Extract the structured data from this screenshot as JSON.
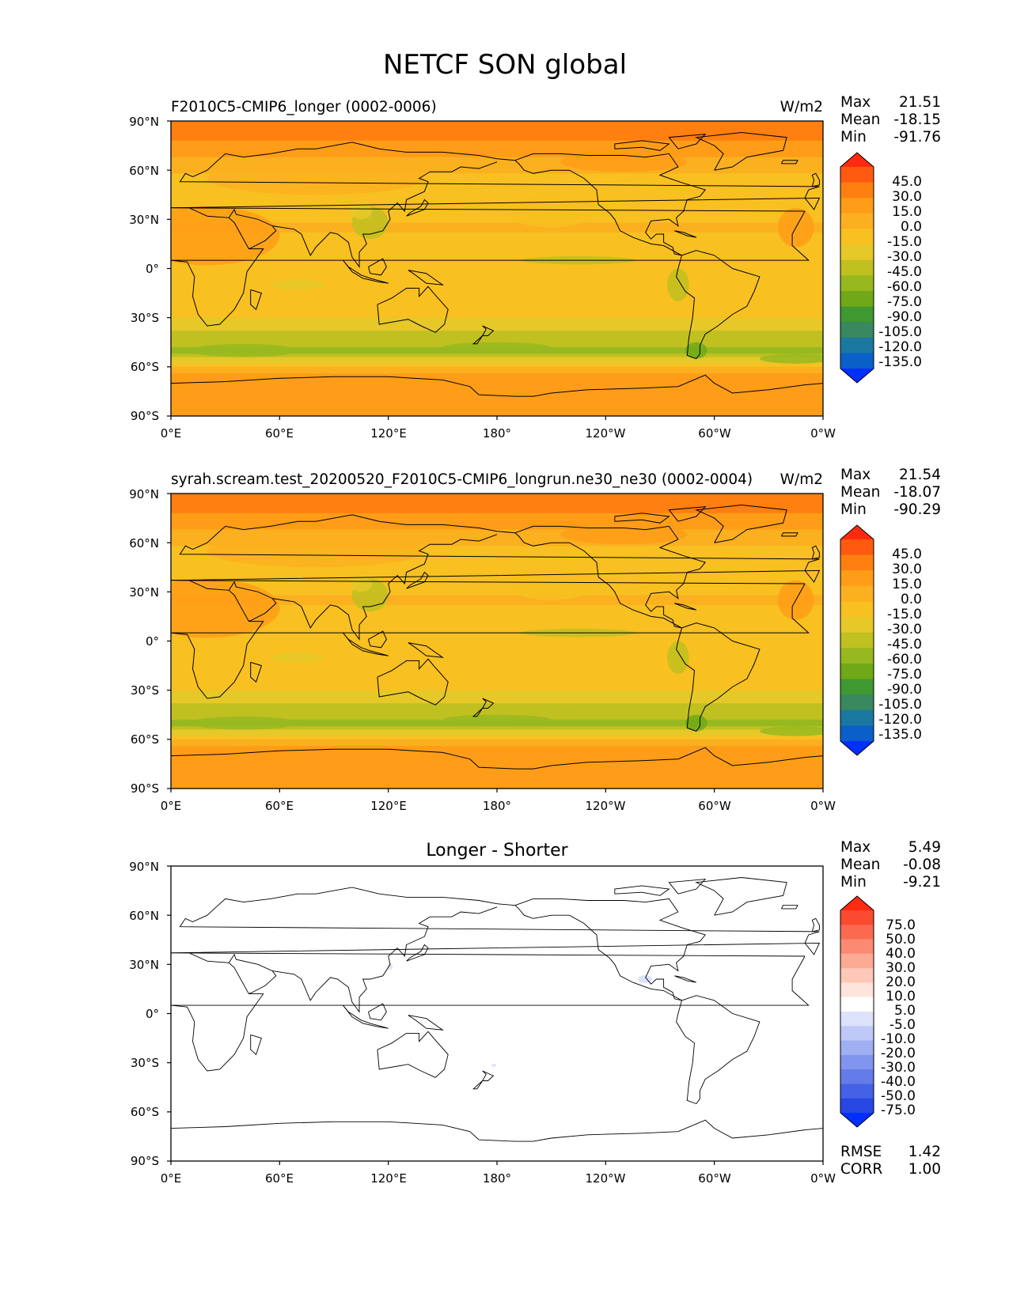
{
  "title": "NETCF SON global",
  "chart_data": [
    {
      "type": "heatmap",
      "panel": "test",
      "title_left": "F2010C5-CMIP6_longer (0002-0006)",
      "title_right": "W/m2",
      "stats": [
        {
          "label": "Max",
          "value": "21.51"
        },
        {
          "label": "Mean",
          "value": "-18.15"
        },
        {
          "label": "Min",
          "value": "-91.76"
        }
      ],
      "xticks": [
        "0°E",
        "60°E",
        "120°E",
        "180°",
        "120°W",
        "60°W",
        "0°W"
      ],
      "yticks": [
        "90°N",
        "60°N",
        "30°N",
        "0°",
        "30°S",
        "60°S",
        "90°S"
      ],
      "xlim": [
        0,
        360
      ],
      "ylim": [
        -90,
        90
      ],
      "colorbar": {
        "levels": [
          "45.0",
          "30.0",
          "15.0",
          "0.0",
          "-15.0",
          "-30.0",
          "-45.0",
          "-60.0",
          "-75.0",
          "-90.0",
          "-105.0",
          "-120.0",
          "-135.0"
        ],
        "colors": [
          "#ff2a10",
          "#ff5a10",
          "#ff8010",
          "#ff9d18",
          "#fbb020",
          "#f8c020",
          "#e6c828",
          "#c0c020",
          "#98b820",
          "#70a818",
          "#409830",
          "#3a8860",
          "#1a78a0",
          "#0a60c8",
          "#0030ff"
        ]
      },
      "zonal_profile": [
        {
          "lat": 90,
          "value": 22
        },
        {
          "lat": 80,
          "value": 17
        },
        {
          "lat": 70,
          "value": 5
        },
        {
          "lat": 55,
          "value": -20
        },
        {
          "lat": 40,
          "value": -28
        },
        {
          "lat": 25,
          "value": -12
        },
        {
          "lat": 10,
          "value": -25
        },
        {
          "lat": 0,
          "value": -30
        },
        {
          "lat": -10,
          "value": -25
        },
        {
          "lat": -20,
          "value": -22
        },
        {
          "lat": -30,
          "value": -30
        },
        {
          "lat": -40,
          "value": -48
        },
        {
          "lat": -50,
          "value": -65
        },
        {
          "lat": -58,
          "value": -30
        },
        {
          "lat": -65,
          "value": 10
        },
        {
          "lat": -75,
          "value": 12
        },
        {
          "lat": -90,
          "value": 14
        }
      ]
    },
    {
      "type": "heatmap",
      "panel": "reference",
      "title_left": "syrah.scream.test_20200520_F2010C5-CMIP6_longrun.ne30_ne30 (0002-0004)",
      "title_right": "W/m2",
      "stats": [
        {
          "label": "Max",
          "value": "21.54"
        },
        {
          "label": "Mean",
          "value": "-18.07"
        },
        {
          "label": "Min",
          "value": "-90.29"
        }
      ],
      "xticks": [
        "0°E",
        "60°E",
        "120°E",
        "180°",
        "120°W",
        "60°W",
        "0°W"
      ],
      "yticks": [
        "90°N",
        "60°N",
        "30°N",
        "0°",
        "30°S",
        "60°S",
        "90°S"
      ],
      "xlim": [
        0,
        360
      ],
      "ylim": [
        -90,
        90
      ],
      "colorbar": {
        "levels": [
          "45.0",
          "30.0",
          "15.0",
          "0.0",
          "-15.0",
          "-30.0",
          "-45.0",
          "-60.0",
          "-75.0",
          "-90.0",
          "-105.0",
          "-120.0",
          "-135.0"
        ],
        "colors": [
          "#ff2a10",
          "#ff5a10",
          "#ff8010",
          "#ff9d18",
          "#fbb020",
          "#f8c020",
          "#e6c828",
          "#c0c020",
          "#98b820",
          "#70a818",
          "#409830",
          "#3a8860",
          "#1a78a0",
          "#0a60c8",
          "#0030ff"
        ]
      },
      "zonal_profile": [
        {
          "lat": 90,
          "value": 22
        },
        {
          "lat": 80,
          "value": 17
        },
        {
          "lat": 70,
          "value": 5
        },
        {
          "lat": 55,
          "value": -20
        },
        {
          "lat": 40,
          "value": -28
        },
        {
          "lat": 25,
          "value": -12
        },
        {
          "lat": 10,
          "value": -25
        },
        {
          "lat": 0,
          "value": -30
        },
        {
          "lat": -10,
          "value": -25
        },
        {
          "lat": -20,
          "value": -22
        },
        {
          "lat": -30,
          "value": -30
        },
        {
          "lat": -40,
          "value": -48
        },
        {
          "lat": -50,
          "value": -65
        },
        {
          "lat": -58,
          "value": -30
        },
        {
          "lat": -65,
          "value": 10
        },
        {
          "lat": -75,
          "value": 12
        },
        {
          "lat": -90,
          "value": 14
        }
      ]
    },
    {
      "type": "heatmap",
      "panel": "difference",
      "title_center": "Longer - Shorter",
      "stats": [
        {
          "label": "Max",
          "value": "5.49"
        },
        {
          "label": "Mean",
          "value": "-0.08"
        },
        {
          "label": "Min",
          "value": "-9.21"
        }
      ],
      "bottom_stats": [
        {
          "label": "RMSE",
          "value": "1.42"
        },
        {
          "label": "CORR",
          "value": "1.00"
        }
      ],
      "xticks": [
        "0°E",
        "60°E",
        "120°E",
        "180°",
        "120°W",
        "60°W",
        "0°W"
      ],
      "yticks": [
        "90°N",
        "60°N",
        "30°N",
        "0°",
        "30°S",
        "60°S",
        "90°S"
      ],
      "xlim": [
        0,
        360
      ],
      "ylim": [
        -90,
        90
      ],
      "colorbar": {
        "levels": [
          "75.0",
          "50.0",
          "40.0",
          "30.0",
          "20.0",
          "10.0",
          "5.0",
          "-5.0",
          "-10.0",
          "-20.0",
          "-30.0",
          "-40.0",
          "-50.0",
          "-75.0"
        ],
        "colors": [
          "#ff2a10",
          "#fb4a30",
          "#fb6a50",
          "#fc8a72",
          "#fdaa95",
          "#fdc8b8",
          "#fee4da",
          "#ffffff",
          "#dde3fb",
          "#bfc9f7",
          "#a0aff2",
          "#8295ee",
          "#647bea",
          "#4561e6",
          "#2747e2",
          "#0030ff"
        ]
      }
    }
  ]
}
